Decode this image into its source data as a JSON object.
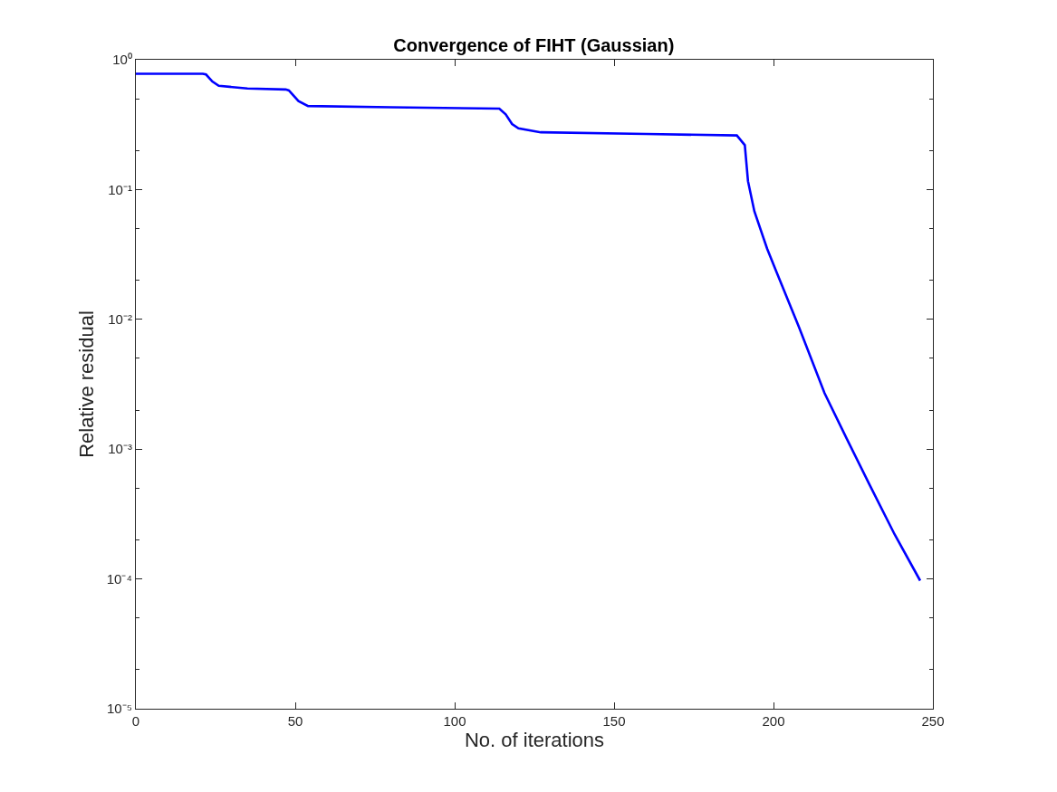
{
  "chart_data": {
    "type": "line",
    "title": "Convergence of FIHT (Gaussian)",
    "xlabel": "No. of iterations",
    "ylabel": "Relative residual",
    "log": "y",
    "marker": "none",
    "line_style": "solid",
    "xlim": [
      0,
      250
    ],
    "xticks": [
      0,
      50,
      100,
      150,
      200,
      250
    ],
    "ylim": [
      1e-05,
      1
    ],
    "yticks": [
      {
        "value": 1e-05,
        "label": "10⁻⁵"
      },
      {
        "value": 0.0001,
        "label": "10⁻⁴"
      },
      {
        "value": 0.001,
        "label": "10⁻³"
      },
      {
        "value": 0.01,
        "label": "10⁻²"
      },
      {
        "value": 0.1,
        "label": "10⁻¹"
      },
      {
        "value": 1,
        "label": "10⁰"
      }
    ],
    "series": [
      {
        "color": "#0000ff",
        "x": [
          0,
          10,
          21,
          22,
          24,
          26,
          35,
          47,
          48,
          51,
          54,
          80,
          114,
          116,
          118,
          120,
          127,
          160,
          188.5,
          191,
          192,
          194,
          198,
          201,
          208,
          216,
          223,
          230,
          238,
          246
        ],
        "values": [
          0.78,
          0.78,
          0.78,
          0.77,
          0.68,
          0.63,
          0.6,
          0.59,
          0.58,
          0.48,
          0.44,
          0.43,
          0.42,
          0.38,
          0.32,
          0.296,
          0.276,
          0.268,
          0.261,
          0.22,
          0.116,
          0.068,
          0.035,
          0.023,
          0.0087,
          0.0027,
          0.0012,
          0.00054,
          0.00022,
          9.7e-05
        ]
      }
    ]
  }
}
